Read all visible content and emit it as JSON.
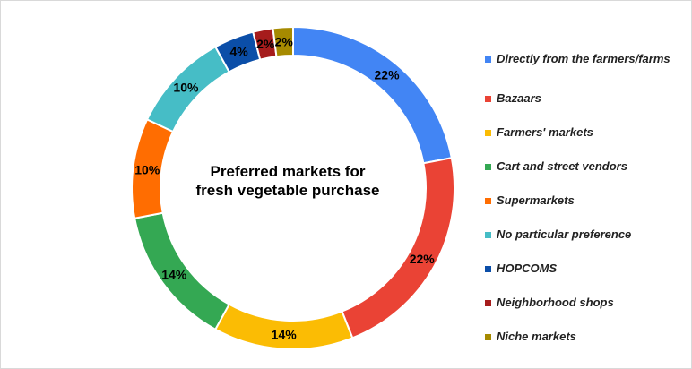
{
  "chart_data": {
    "type": "pie",
    "variant": "donut",
    "title": "Preferred markets for fresh vegetable purchase",
    "categories": [
      "Directly from the farmers/farms",
      "Bazaars",
      "Farmers' markets",
      "Cart and street vendors",
      "Supermarkets",
      "No particular preference",
      "HOPCOMS",
      "Neighborhood shops",
      "Niche markets"
    ],
    "values": [
      22,
      22,
      14,
      14,
      10,
      10,
      4,
      2,
      2
    ],
    "value_labels": [
      "22%",
      "22%",
      "14%",
      "14%",
      "10%",
      "10%",
      "4%",
      "2%",
      "2%"
    ],
    "colors": [
      "#4285f4",
      "#ea4335",
      "#fbbc04",
      "#34a853",
      "#ff6d01",
      "#46bdc6",
      "#0b4ea8",
      "#a61c1c",
      "#a68a00"
    ],
    "legend_position": "right"
  }
}
